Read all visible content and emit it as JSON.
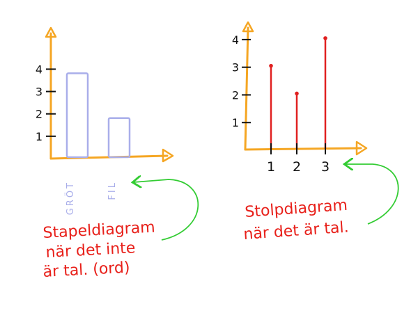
{
  "colors": {
    "axis": "#F5A623",
    "bar_outline": "#A9AEEA",
    "stem": "#E02020",
    "note_text": "#E8201A",
    "arrow": "#33CC33",
    "tick_text": "#111111"
  },
  "chart_data": [
    {
      "type": "bar",
      "categories": [
        "GRÖT",
        "FIL"
      ],
      "values": [
        4,
        2
      ],
      "ylim": [
        0,
        5.6
      ],
      "y_ticks": [
        "1",
        "2",
        "3",
        "4"
      ],
      "grid": false,
      "annotation": [
        "Stapeldiagram",
        "när det inte",
        "är tal. (ord)"
      ]
    },
    {
      "type": "bar",
      "x": [
        "1",
        "2",
        "3"
      ],
      "values": [
        3,
        2,
        4
      ],
      "ylim": [
        0,
        4.5
      ],
      "y_ticks": [
        "1",
        "2",
        "3",
        "4"
      ],
      "grid": false,
      "annotation": [
        "Stolpdiagram",
        "när det är tal."
      ]
    }
  ]
}
